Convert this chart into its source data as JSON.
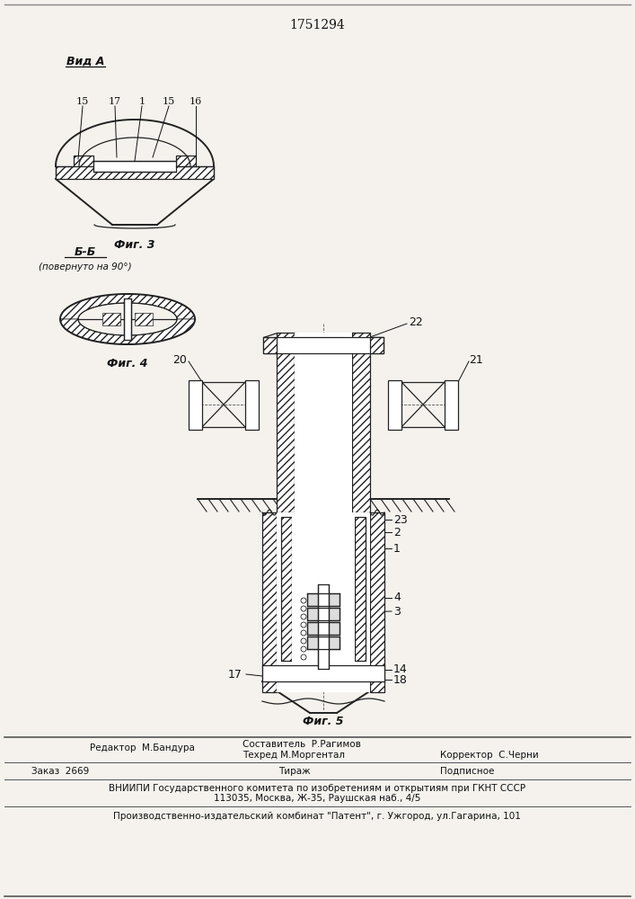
{
  "title": "1751294",
  "fig_width": 7.07,
  "fig_height": 10.0,
  "bg_color": "#f5f2ee",
  "text_color": "#111111",
  "lc": "#222222",
  "footer": {
    "editor": "Редактор  М.Бандура",
    "composer": "Составитель  Р.Рагимов",
    "techred": "Техред М.Моргентал",
    "corrector": "Корректор  С.Черни",
    "order": "Заказ  2669",
    "tirazh": "Тираж",
    "podpisnoe": "Подписное",
    "vniipи1": "ВНИИПИ Государственного комитета по изобретениям и открытиям при ГКНТ СССР",
    "vniipи2": "113035, Москва, Ж-35, Раушская наб., 4/5",
    "kombinat": "Производственно-издательский комбинат \"Патент\", г. Ужгород, ул.Гагарина, 101"
  }
}
